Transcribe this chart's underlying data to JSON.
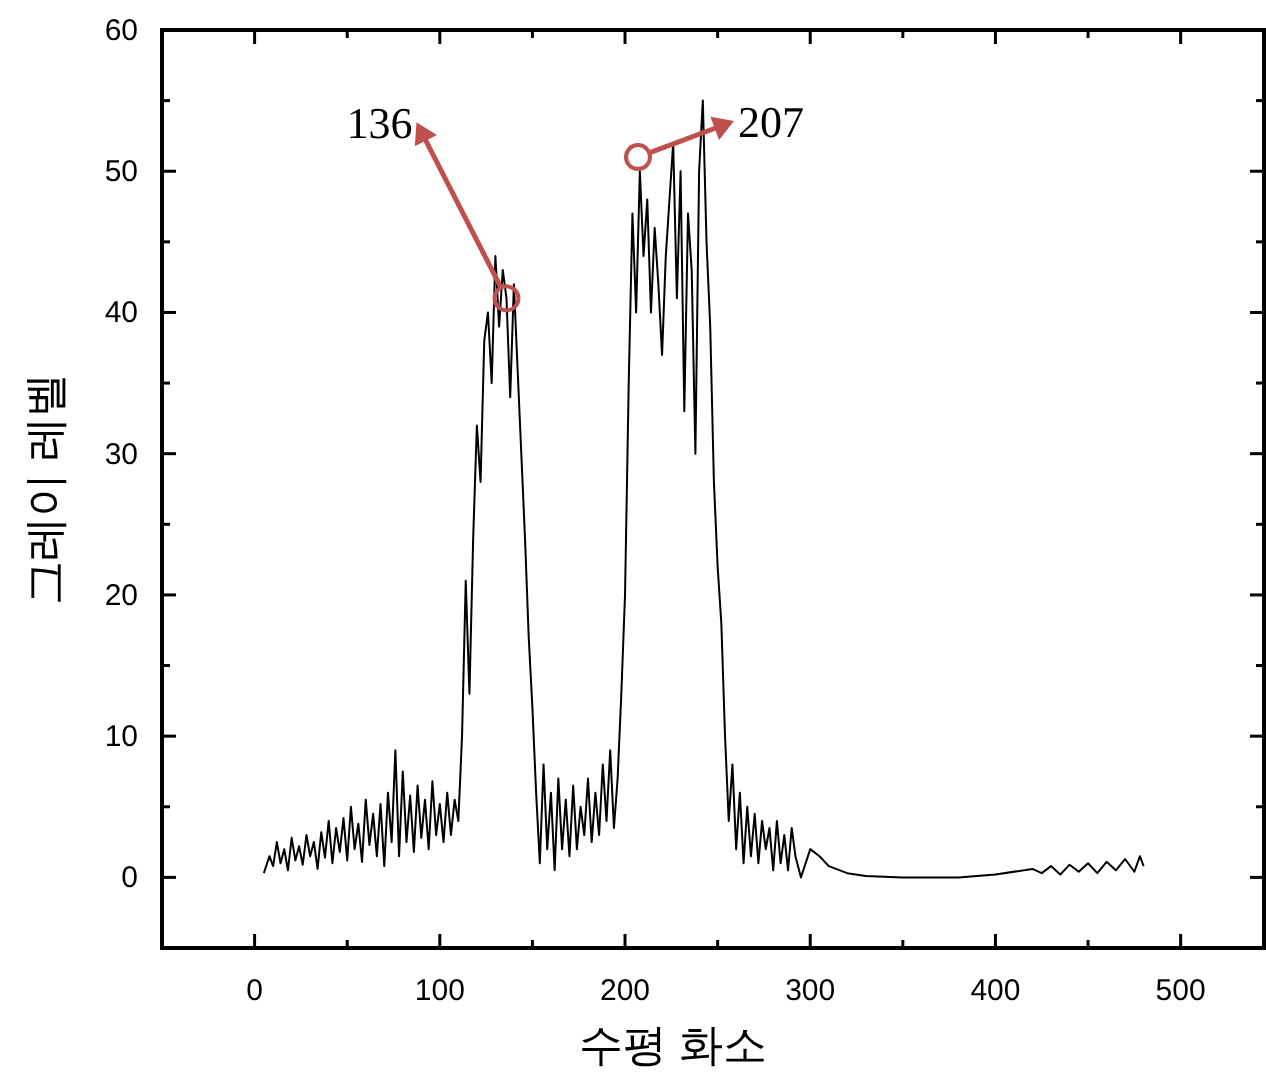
{
  "chart_data": {
    "type": "line",
    "xlabel": "수평 화소",
    "ylabel": "그레이 레벨",
    "xlim": [
      -50,
      545
    ],
    "ylim": [
      -5,
      60
    ],
    "xticks": [
      0,
      {
        "value": 50,
        "label": null
      },
      100,
      {
        "value": 150,
        "label": null
      },
      200,
      {
        "value": 250,
        "label": null
      },
      300,
      {
        "value": 350,
        "label": null
      },
      400,
      {
        "value": 450,
        "label": null
      },
      500
    ],
    "yticks": [
      0,
      {
        "value": 5,
        "label": null
      },
      10,
      {
        "value": 15,
        "label": null
      },
      20,
      {
        "value": 25,
        "label": null
      },
      30,
      {
        "value": 35,
        "label": null
      },
      40,
      {
        "value": 45,
        "label": null
      },
      50,
      {
        "value": 55,
        "label": null
      },
      60
    ],
    "grid": false,
    "marker": "none",
    "line_style": "solid",
    "annotations": [
      {
        "text": "136",
        "x": 136,
        "y": 41
      },
      {
        "text": "207",
        "x": 207,
        "y": 51
      }
    ],
    "series": [
      {
        "color": "#000000",
        "x": [
          5,
          8,
          10,
          12,
          14,
          16,
          18,
          20,
          22,
          24,
          26,
          28,
          30,
          32,
          34,
          36,
          38,
          40,
          42,
          44,
          46,
          48,
          50,
          52,
          54,
          56,
          58,
          60,
          62,
          64,
          66,
          68,
          70,
          72,
          74,
          76,
          78,
          80,
          82,
          84,
          86,
          88,
          90,
          92,
          94,
          96,
          98,
          100,
          102,
          104,
          106,
          108,
          110,
          112,
          114,
          116,
          118,
          120,
          122,
          124,
          126,
          128,
          130,
          132,
          134,
          136,
          138,
          140,
          142,
          144,
          146,
          148,
          150,
          152,
          154,
          156,
          158,
          160,
          162,
          164,
          166,
          168,
          170,
          172,
          174,
          176,
          178,
          180,
          182,
          184,
          186,
          188,
          190,
          192,
          194,
          196,
          198,
          200,
          202,
          204,
          206,
          208,
          210,
          212,
          214,
          216,
          218,
          220,
          222,
          224,
          226,
          228,
          230,
          232,
          234,
          236,
          238,
          240,
          242,
          244,
          246,
          248,
          250,
          252,
          254,
          256,
          258,
          260,
          262,
          264,
          266,
          268,
          270,
          272,
          274,
          276,
          278,
          280,
          282,
          284,
          286,
          288,
          290,
          292,
          295,
          300,
          305,
          310,
          320,
          330,
          350,
          380,
          400,
          420,
          425,
          430,
          435,
          440,
          445,
          450,
          455,
          460,
          465,
          470,
          475,
          478,
          480
        ],
        "values": [
          0.3,
          1.5,
          0.8,
          2.5,
          1,
          2,
          0.5,
          2.8,
          1.2,
          2.2,
          0.9,
          3,
          1.5,
          2.5,
          0.6,
          3.2,
          1.4,
          4,
          1,
          3.5,
          1.8,
          4.2,
          1.2,
          5,
          2,
          3.8,
          1.1,
          5.5,
          2.3,
          4.5,
          1.5,
          5.2,
          0.8,
          6,
          2.5,
          9,
          1.5,
          7.5,
          2.5,
          5.8,
          1.8,
          6.5,
          2.8,
          5.5,
          2,
          6.8,
          3,
          5.2,
          2.5,
          6,
          3,
          5.5,
          4,
          10,
          21,
          13,
          24,
          32,
          28,
          38,
          40,
          35,
          44,
          39,
          43,
          41,
          34,
          42,
          36,
          30,
          24,
          17,
          12,
          6,
          1,
          8,
          2,
          6,
          0.5,
          7,
          2,
          5.5,
          1.5,
          6.5,
          2,
          5,
          3,
          7,
          2.5,
          6,
          3,
          8,
          4,
          9,
          3.5,
          7,
          13,
          20,
          35,
          47,
          40,
          50,
          44,
          48,
          40,
          46,
          42,
          37,
          44,
          48,
          52,
          41,
          50,
          33,
          47,
          43,
          30,
          50,
          55,
          45,
          39,
          28,
          22,
          18,
          10,
          4,
          8,
          2,
          6,
          1,
          5,
          1.5,
          4.5,
          1,
          4,
          2,
          3.5,
          0.5,
          4,
          1,
          3,
          0.5,
          3.5,
          1.5,
          0,
          2,
          1.5,
          0.8,
          0.3,
          0.1,
          0,
          0,
          0.2,
          0.6,
          0.3,
          0.8,
          0.2,
          0.9,
          0.4,
          1,
          0.3,
          1.1,
          0.5,
          1.3,
          0.4,
          1.5,
          0.8
        ]
      }
    ]
  }
}
